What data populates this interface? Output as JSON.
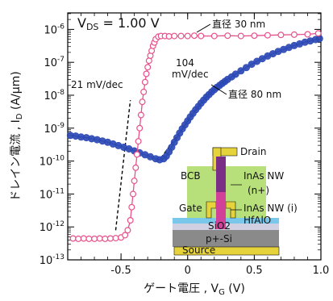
{
  "chart_data": {
    "type": "scatter",
    "y_scale": "log",
    "xlim": [
      -0.9,
      1.0
    ],
    "ylim_exponent": [
      -13,
      -5.5
    ],
    "xlabel": "ゲート電圧 , V",
    "xlabel_sub": "G",
    "xlabel_unit": " (V)",
    "ylabel": "ドレイン電流 , I",
    "ylabel_sub": "D",
    "ylabel_unit": " (A/μm)",
    "x_ticks": [
      {
        "value": -0.5,
        "label": "-0.5"
      },
      {
        "value": 0,
        "label": "0"
      },
      {
        "value": 0.5,
        "label": "0.5"
      },
      {
        "value": 1.0,
        "label": "1.0"
      }
    ],
    "y_ticks": [
      {
        "exp": -13,
        "label": "10",
        "sup": "-13"
      },
      {
        "exp": -12,
        "label": "10",
        "sup": "-12"
      },
      {
        "exp": -11,
        "label": "10",
        "sup": "-11"
      },
      {
        "exp": -10,
        "label": "10",
        "sup": "-10"
      },
      {
        "exp": -9,
        "label": "10",
        "sup": "-9"
      },
      {
        "exp": -8,
        "label": "10",
        "sup": "-8"
      },
      {
        "exp": -7,
        "label": "10",
        "sup": "-7"
      },
      {
        "exp": -6,
        "label": "10",
        "sup": "-6"
      }
    ],
    "vds_label": "V",
    "vds_sub": "DS",
    "vds_value": " = 1.00 V",
    "annotations": {
      "ss_small": "21 mV/dec",
      "ss_large_value": "104",
      "ss_large_unit": "mV/dec",
      "d30": "直径 30 nm",
      "d80": "直径 80 nm"
    },
    "series": [
      {
        "name": "直径 30 nm",
        "color": "#e8508c",
        "marker": "open-circle",
        "x": [
          -0.86,
          -0.82,
          -0.78,
          -0.74,
          -0.7,
          -0.66,
          -0.62,
          -0.58,
          -0.54,
          -0.5,
          -0.47,
          -0.45,
          -0.43,
          -0.42,
          -0.41,
          -0.4,
          -0.39,
          -0.38,
          -0.37,
          -0.36,
          -0.35,
          -0.34,
          -0.33,
          -0.32,
          -0.31,
          -0.3,
          -0.29,
          -0.28,
          -0.27,
          -0.26,
          -0.25,
          -0.24,
          -0.22,
          -0.2,
          -0.17,
          -0.14,
          -0.1,
          -0.05,
          0.0,
          0.05,
          0.1,
          0.2,
          0.3,
          0.4,
          0.5,
          0.6,
          0.7,
          0.8,
          0.9,
          0.98
        ],
        "log_y": [
          -12.35,
          -12.36,
          -12.35,
          -12.36,
          -12.36,
          -12.35,
          -12.36,
          -12.35,
          -12.34,
          -12.32,
          -12.25,
          -12.1,
          -11.8,
          -11.4,
          -11.0,
          -10.6,
          -10.2,
          -9.8,
          -9.4,
          -9.0,
          -8.6,
          -8.2,
          -7.9,
          -7.6,
          -7.35,
          -7.15,
          -6.95,
          -6.8,
          -6.65,
          -6.5,
          -6.4,
          -6.3,
          -6.22,
          -6.2,
          -6.2,
          -6.21,
          -6.2,
          -6.2,
          -6.2,
          -6.19,
          -6.2,
          -6.2,
          -6.19,
          -6.2,
          -6.19,
          -6.18,
          -6.17,
          -6.16,
          -6.15,
          -6.12
        ]
      },
      {
        "name": "直径 80 nm",
        "color": "#2c49b5",
        "marker": "filled-circle",
        "x": [
          -0.88,
          -0.84,
          -0.8,
          -0.76,
          -0.72,
          -0.68,
          -0.64,
          -0.6,
          -0.56,
          -0.52,
          -0.48,
          -0.44,
          -0.4,
          -0.36,
          -0.32,
          -0.28,
          -0.24,
          -0.21,
          -0.18,
          -0.16,
          -0.14,
          -0.12,
          -0.1,
          -0.08,
          -0.06,
          -0.04,
          -0.02,
          0.0,
          0.02,
          0.04,
          0.06,
          0.08,
          0.1,
          0.12,
          0.14,
          0.16,
          0.18,
          0.2,
          0.22,
          0.24,
          0.26,
          0.28,
          0.3,
          0.33,
          0.36,
          0.4,
          0.44,
          0.48,
          0.52,
          0.56,
          0.6,
          0.64,
          0.68,
          0.72,
          0.76,
          0.8,
          0.84,
          0.88,
          0.92,
          0.96,
          0.99
        ],
        "log_y": [
          -9.22,
          -9.24,
          -9.27,
          -9.29,
          -9.32,
          -9.35,
          -9.39,
          -9.43,
          -9.48,
          -9.53,
          -9.58,
          -9.63,
          -9.69,
          -9.75,
          -9.81,
          -9.87,
          -9.93,
          -9.96,
          -9.93,
          -9.85,
          -9.72,
          -9.58,
          -9.43,
          -9.29,
          -9.15,
          -9.02,
          -8.9,
          -8.78,
          -8.66,
          -8.55,
          -8.44,
          -8.34,
          -8.24,
          -8.15,
          -8.06,
          -7.98,
          -7.9,
          -7.83,
          -7.76,
          -7.7,
          -7.64,
          -7.58,
          -7.52,
          -7.44,
          -7.36,
          -7.26,
          -7.16,
          -7.06,
          -6.97,
          -6.89,
          -6.81,
          -6.74,
          -6.67,
          -6.61,
          -6.55,
          -6.49,
          -6.44,
          -6.39,
          -6.35,
          -6.31,
          -6.28
        ]
      }
    ],
    "fit_lines": [
      {
        "name": "ss-21",
        "x": [
          -0.54,
          -0.43
        ],
        "log_y": [
          -12.1,
          -8.15
        ]
      },
      {
        "name": "ss-104",
        "x": [
          -0.2,
          0.17
        ],
        "log_y": [
          -9.9,
          -7.88
        ]
      }
    ]
  },
  "inset": {
    "labels": {
      "drain": "Drain",
      "bcb": "BCB",
      "inas_nw": "InAs NW",
      "n_plus": "(n+)",
      "gate": "Gate",
      "inas_nw_i": "InAs NW (i)",
      "hfalo": "HfAlO",
      "sio2": "SiO2",
      "p_si": "p+-Si",
      "source": "Source"
    },
    "colors": {
      "bcb": "#b8e07a",
      "gate_metal": "#e6d23a",
      "nw_top": "#7a2e86",
      "nw_body": "#d1419a",
      "hfalo": "#79c7ea",
      "sio2": "#cfd1e2",
      "p_si": "#8a8a8a"
    }
  }
}
